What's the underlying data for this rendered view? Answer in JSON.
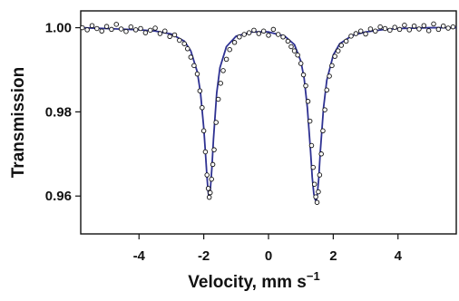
{
  "chart_data": {
    "type": "scatter",
    "title": "",
    "xlabel": "Velocity, mm s",
    "xlabel_superscript": "−1",
    "ylabel": "Transmission",
    "xlim": [
      -5.8,
      5.8
    ],
    "ylim": [
      0.951,
      1.004
    ],
    "x_ticks": [
      -4,
      -2,
      0,
      2,
      4
    ],
    "x_tick_labels": [
      "-4",
      "-2",
      "0",
      "2",
      "4"
    ],
    "y_ticks": [
      0.96,
      0.98,
      1.0
    ],
    "y_tick_labels": [
      "0.96",
      "0.98",
      "1.00"
    ],
    "grid": false,
    "legend": "none",
    "series": [
      {
        "kind": "fit-line",
        "color": "#2e3192",
        "x": [
          -5.8,
          -5.0,
          -4.0,
          -3.5,
          -3.0,
          -2.6,
          -2.4,
          -2.2,
          -2.1,
          -2.0,
          -1.95,
          -1.9,
          -1.87,
          -1.84,
          -1.8,
          -1.75,
          -1.7,
          -1.6,
          -1.5,
          -1.3,
          -1.0,
          -0.5,
          0.0,
          0.5,
          0.8,
          1.0,
          1.1,
          1.2,
          1.3,
          1.35,
          1.4,
          1.44,
          1.47,
          1.5,
          1.55,
          1.6,
          1.7,
          1.8,
          2.0,
          2.2,
          2.6,
          3.0,
          3.5,
          4.0,
          5.0,
          5.8
        ],
        "y": [
          1.0,
          0.9998,
          0.9995,
          0.9992,
          0.9985,
          0.9968,
          0.9945,
          0.9895,
          0.9845,
          0.9762,
          0.9705,
          0.9645,
          0.9615,
          0.9595,
          0.9612,
          0.9665,
          0.9735,
          0.9845,
          0.9905,
          0.9955,
          0.998,
          0.999,
          0.999,
          0.998,
          0.996,
          0.992,
          0.988,
          0.981,
          0.9705,
          0.9645,
          0.9605,
          0.9592,
          0.9588,
          0.9598,
          0.964,
          0.9705,
          0.981,
          0.9875,
          0.9935,
          0.9962,
          0.9982,
          0.999,
          0.9995,
          0.9998,
          1.0,
          1.0
        ]
      },
      {
        "kind": "data-points",
        "color": "#111111",
        "x": [
          -5.75,
          -5.6,
          -5.45,
          -5.3,
          -5.15,
          -5.0,
          -4.85,
          -4.7,
          -4.55,
          -4.4,
          -4.25,
          -4.1,
          -3.95,
          -3.8,
          -3.65,
          -3.5,
          -3.35,
          -3.2,
          -3.05,
          -2.9,
          -2.75,
          -2.6,
          -2.5,
          -2.4,
          -2.3,
          -2.2,
          -2.12,
          -2.05,
          -2.0,
          -1.95,
          -1.9,
          -1.86,
          -1.83,
          -1.8,
          -1.76,
          -1.72,
          -1.68,
          -1.62,
          -1.55,
          -1.48,
          -1.4,
          -1.3,
          -1.2,
          -1.05,
          -0.9,
          -0.75,
          -0.6,
          -0.45,
          -0.3,
          -0.15,
          0.0,
          0.15,
          0.3,
          0.45,
          0.6,
          0.7,
          0.8,
          0.9,
          1.0,
          1.08,
          1.15,
          1.22,
          1.28,
          1.33,
          1.38,
          1.42,
          1.46,
          1.5,
          1.54,
          1.58,
          1.63,
          1.68,
          1.74,
          1.8,
          1.88,
          1.96,
          2.05,
          2.15,
          2.25,
          2.4,
          2.55,
          2.7,
          2.85,
          3.0,
          3.15,
          3.3,
          3.45,
          3.6,
          3.75,
          3.9,
          4.05,
          4.2,
          4.35,
          4.5,
          4.65,
          4.8,
          4.95,
          5.1,
          5.25,
          5.4,
          5.55,
          5.7
        ],
        "y": [
          1.0,
          0.9995,
          1.0005,
          0.9998,
          0.9992,
          1.0003,
          0.9996,
          1.0008,
          0.9997,
          0.9991,
          1.0002,
          0.9995,
          0.9998,
          0.9988,
          0.9994,
          0.9999,
          0.9986,
          0.9992,
          0.9979,
          0.9983,
          0.997,
          0.9962,
          0.995,
          0.993,
          0.991,
          0.989,
          0.985,
          0.981,
          0.9755,
          0.9705,
          0.965,
          0.9618,
          0.9597,
          0.9608,
          0.964,
          0.9675,
          0.971,
          0.9775,
          0.983,
          0.9868,
          0.9898,
          0.9925,
          0.9948,
          0.9965,
          0.9978,
          0.9984,
          0.9988,
          0.9994,
          0.9986,
          0.9992,
          0.9982,
          0.9996,
          0.9984,
          0.9978,
          0.9968,
          0.9955,
          0.9945,
          0.9935,
          0.9915,
          0.9888,
          0.9862,
          0.9825,
          0.9778,
          0.972,
          0.9668,
          0.9628,
          0.9598,
          0.9585,
          0.961,
          0.965,
          0.97,
          0.9755,
          0.9805,
          0.9852,
          0.9885,
          0.991,
          0.9932,
          0.9945,
          0.9958,
          0.9968,
          0.998,
          0.9986,
          0.9992,
          0.9985,
          0.9997,
          0.9992,
          1.0002,
          0.9998,
          0.9994,
          1.0001,
          0.9996,
          1.0006,
          0.9995,
          1.0004,
          0.9997,
          1.0005,
          0.9993,
          1.0009,
          0.9996,
          1.0004,
          0.9999,
          1.0002
        ]
      }
    ]
  }
}
